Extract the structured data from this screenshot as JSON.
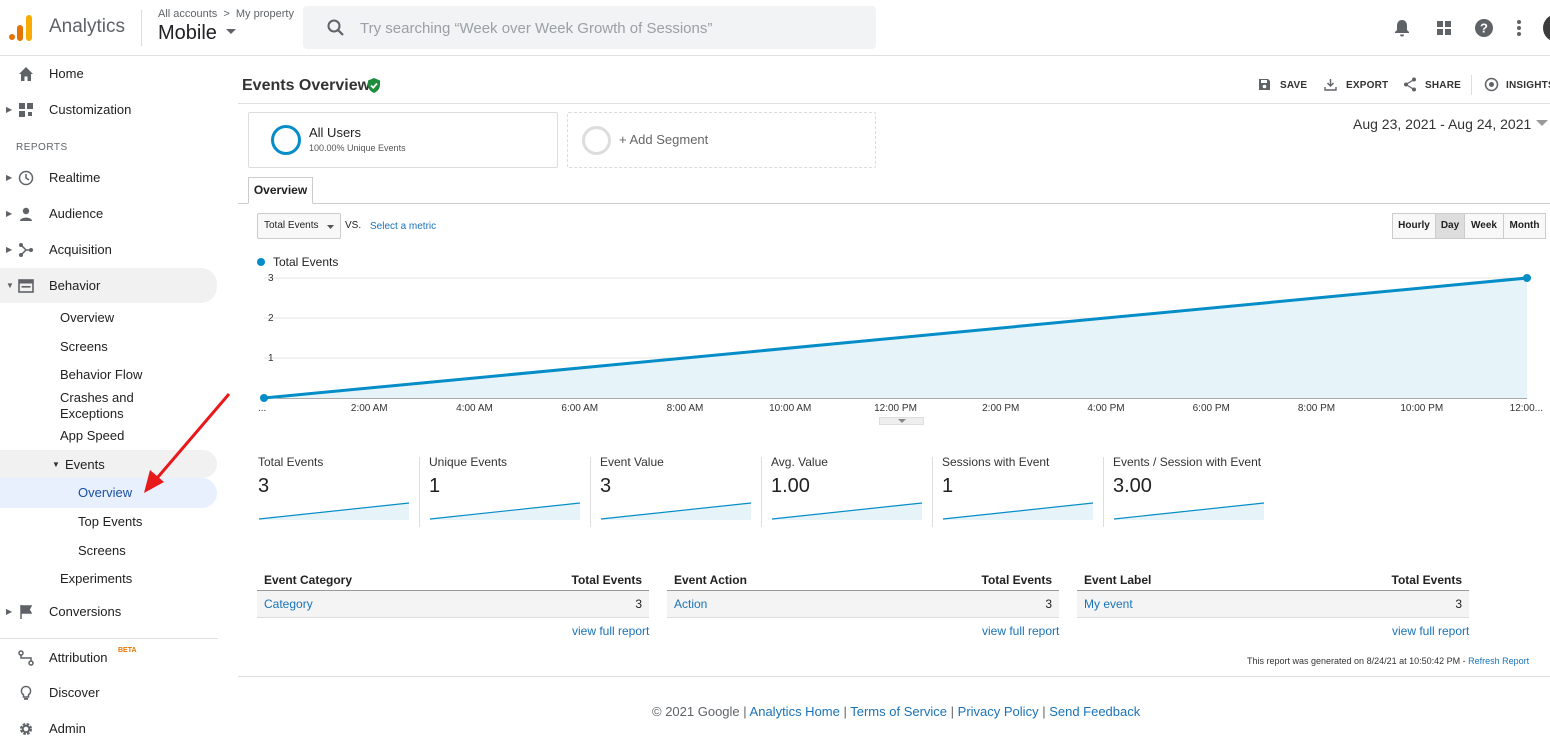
{
  "header": {
    "app_name": "Analytics",
    "crumb_accounts": "All accounts",
    "crumb_sep": ">",
    "crumb_property": "My property",
    "property_name": "Mobile",
    "search_placeholder": "Try searching “Week over Week Growth of Sessions”",
    "icons": [
      "bell-icon",
      "apps-grid-icon",
      "help-icon",
      "more-vert-icon"
    ]
  },
  "sidebar": {
    "home": "Home",
    "customization": "Customization",
    "reports_heading": "REPORTS",
    "realtime": "Realtime",
    "audience": "Audience",
    "acquisition": "Acquisition",
    "behavior": "Behavior",
    "behavior_items": [
      "Overview",
      "Screens",
      "Behavior Flow",
      "Crashes and",
      "Exceptions",
      "App Speed"
    ],
    "events": "Events",
    "events_items": [
      "Overview",
      "Top Events",
      "Screens"
    ],
    "experiments": "Experiments",
    "conversions": "Conversions",
    "attribution": "Attribution",
    "beta": "BETA",
    "discover": "Discover",
    "admin": "Admin"
  },
  "page": {
    "title": "Events Overview",
    "actions": [
      "SAVE",
      "EXPORT",
      "SHARE",
      "INSIGHTS"
    ],
    "segment_name": "All Users",
    "segment_sub": "100.00% Unique Events",
    "add_segment": "+ Add Segment",
    "date_range": "Aug 23, 2021 - Aug 24, 2021",
    "tab": "Overview",
    "metric_select": "Total Events",
    "vs": "VS.",
    "select_metric": "Select a metric",
    "time_buttons": [
      "Hourly",
      "Day",
      "Week",
      "Month"
    ],
    "active_time": "Day",
    "legend": "Total Events"
  },
  "chart_data": {
    "type": "area",
    "series": [
      {
        "name": "Total Events",
        "x": [
          "...",
          "12:00..."
        ],
        "values": [
          0,
          3
        ]
      }
    ],
    "x_ticks": [
      "...",
      "2:00 AM",
      "4:00 AM",
      "6:00 AM",
      "8:00 AM",
      "10:00 AM",
      "12:00 PM",
      "2:00 PM",
      "4:00 PM",
      "6:00 PM",
      "8:00 PM",
      "10:00 PM",
      "12:00..."
    ],
    "y_ticks": [
      "1",
      "2",
      "3"
    ],
    "ylim": [
      0,
      3
    ],
    "color": "#058dc7",
    "fill": "#e6f3f9"
  },
  "metrics": [
    {
      "label": "Total Events",
      "value": "3"
    },
    {
      "label": "Unique Events",
      "value": "1"
    },
    {
      "label": "Event Value",
      "value": "3"
    },
    {
      "label": "Avg. Value",
      "value": "1.00"
    },
    {
      "label": "Sessions with Event",
      "value": "1"
    },
    {
      "label": "Events / Session with Event",
      "value": "3.00"
    }
  ],
  "tables": [
    {
      "dim": "Event Category",
      "metric": "Total Events",
      "row_label": "Category",
      "row_value": "3",
      "link": "view full report"
    },
    {
      "dim": "Event Action",
      "metric": "Total Events",
      "row_label": "Action",
      "row_value": "3",
      "link": "view full report"
    },
    {
      "dim": "Event Label",
      "metric": "Total Events",
      "row_label": "My event",
      "row_value": "3",
      "link": "view full report"
    }
  ],
  "generated": "This report was generated on 8/24/21 at 10:50:42 PM - ",
  "refresh": "Refresh Report",
  "footer": {
    "copyright": "© 2021 Google",
    "sep": " | ",
    "links": [
      "Analytics Home",
      "Terms of Service",
      "Privacy Policy",
      "Send Feedback"
    ]
  }
}
